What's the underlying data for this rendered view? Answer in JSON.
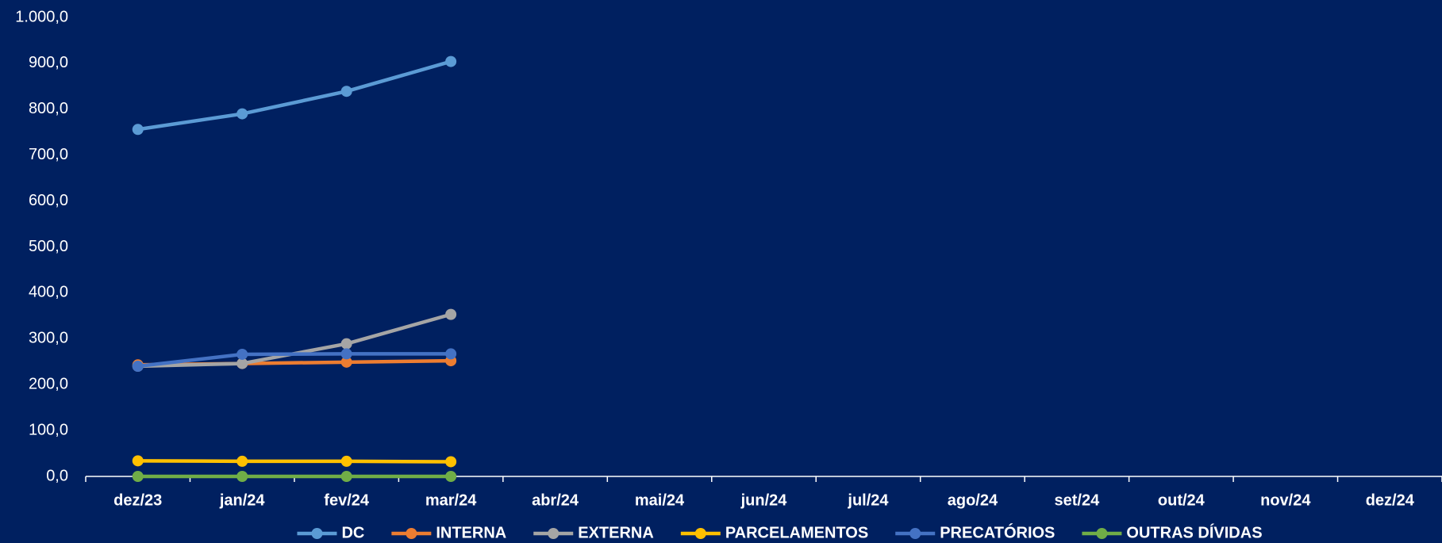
{
  "chart_data": {
    "type": "line",
    "categories": [
      "dez/23",
      "jan/24",
      "fev/24",
      "mar/24",
      "abr/24",
      "mai/24",
      "jun/24",
      "jul/24",
      "ago/24",
      "set/24",
      "out/24",
      "nov/24",
      "dez/24"
    ],
    "series": [
      {
        "name": "DC",
        "color": "#5b9bd5",
        "values": [
          756,
          790,
          839,
          904,
          null,
          null,
          null,
          null,
          null,
          null,
          null,
          null,
          null
        ]
      },
      {
        "name": "INTERNA",
        "color": "#ed7d31",
        "values": [
          243,
          246,
          249,
          252,
          null,
          null,
          null,
          null,
          null,
          null,
          null,
          null,
          null
        ]
      },
      {
        "name": "EXTERNA",
        "color": "#a5a5a5",
        "values": [
          240,
          246,
          289,
          353,
          null,
          null,
          null,
          null,
          null,
          null,
          null,
          null,
          null
        ]
      },
      {
        "name": "PARCELAMENTOS",
        "color": "#ffc000",
        "values": [
          34,
          33,
          33,
          32,
          null,
          null,
          null,
          null,
          null,
          null,
          null,
          null,
          null
        ]
      },
      {
        "name": "PRECATÓRIOS",
        "color": "#4472c4",
        "values": [
          240,
          266,
          267,
          267,
          null,
          null,
          null,
          null,
          null,
          null,
          null,
          null,
          null
        ]
      },
      {
        "name": "OUTRAS DÍVIDAS",
        "color": "#70ad47",
        "values": [
          0,
          0,
          0,
          0,
          null,
          null,
          null,
          null,
          null,
          null,
          null,
          null,
          null
        ]
      }
    ],
    "ylim": [
      0,
      1000
    ],
    "yticks": [
      {
        "value": 0,
        "label": "0,0"
      },
      {
        "value": 100,
        "label": "100,0"
      },
      {
        "value": 200,
        "label": "200,0"
      },
      {
        "value": 300,
        "label": "300,0"
      },
      {
        "value": 400,
        "label": "400,0"
      },
      {
        "value": 500,
        "label": "500,0"
      },
      {
        "value": 600,
        "label": "600,0"
      },
      {
        "value": 700,
        "label": "700,0"
      },
      {
        "value": 800,
        "label": "800,0"
      },
      {
        "value": 900,
        "label": "900,0"
      },
      {
        "value": 1000,
        "label": "1.000,0"
      }
    ],
    "grid": false,
    "legend": "bottom"
  }
}
